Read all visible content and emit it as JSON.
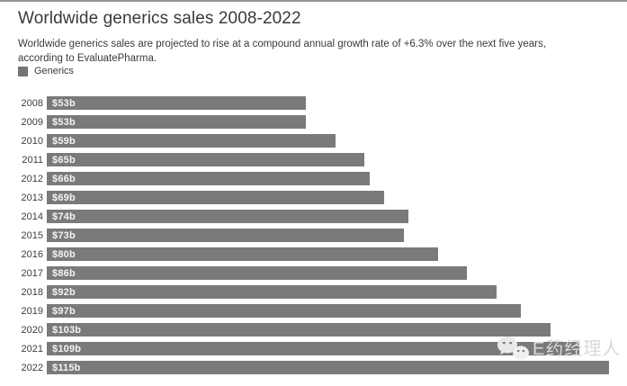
{
  "chart_data": {
    "type": "bar",
    "orientation": "horizontal",
    "title": "Worldwide generics sales 2008-2022",
    "subtitle": "Worldwide generics sales are projected to rise at a compound annual growth rate of +6.3% over the next five years, according to EvaluatePharma.",
    "legend": [
      {
        "label": "Generics",
        "color": "#757575"
      }
    ],
    "legend_position": "top-left",
    "categories": [
      "2008",
      "2009",
      "2010",
      "2011",
      "2012",
      "2013",
      "2014",
      "2015",
      "2016",
      "2017",
      "2018",
      "2019",
      "2020",
      "2021",
      "2022"
    ],
    "values": [
      53,
      53,
      59,
      65,
      66,
      69,
      74,
      73,
      80,
      86,
      92,
      97,
      103,
      109,
      115
    ],
    "value_labels": [
      "$53b",
      "$53b",
      "$59b",
      "$65b",
      "$66b",
      "$69b",
      "$74b",
      "$73b",
      "$80b",
      "$86b",
      "$92b",
      "$97b",
      "$103b",
      "$109b",
      "$115b"
    ],
    "xlim": [
      0,
      118.7
    ],
    "grid": false,
    "bar_color": "#7a7a7a",
    "value_label_color": "#f5f5f5"
  },
  "watermark": {
    "text": "E药经理人",
    "icon": "wechat-logo-icon",
    "color": "#d9d9d9"
  }
}
